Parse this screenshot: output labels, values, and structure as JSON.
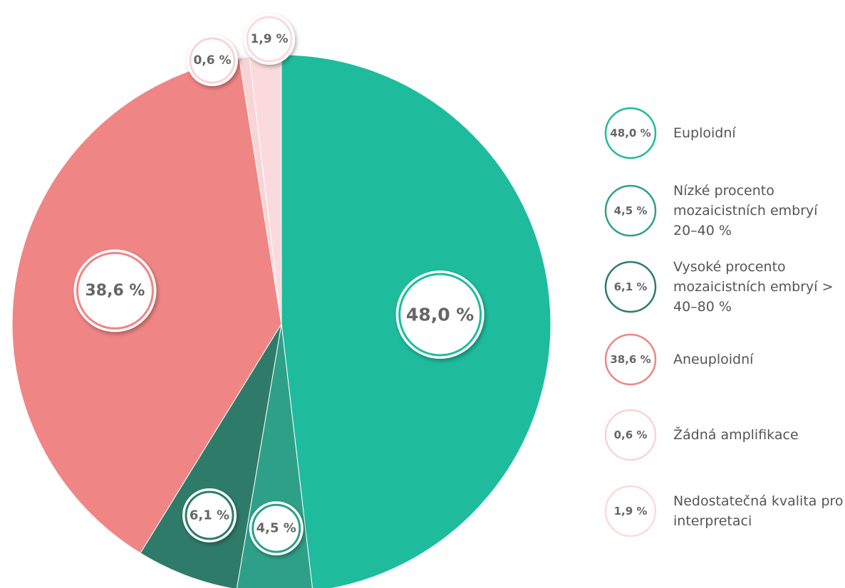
{
  "chart_data": {
    "type": "pie",
    "categories": [
      "Euploidní",
      "Nízké procento mozaicistních embryí 20–40 %",
      "Vysoké procento mozaicistních embryí > 40–80 %",
      "Aneuploidní",
      "Žádná amplifikace",
      "Nedostatečná kvalita pro interpretaci"
    ],
    "values": [
      48.0,
      4.5,
      6.1,
      38.6,
      0.6,
      1.9
    ],
    "value_labels": [
      "48,0 %",
      "4,5 %",
      "6,1 %",
      "38,6 %",
      "0,6 %",
      "1,9 %"
    ],
    "colors": [
      "#1ebc9d",
      "#2fa088",
      "#2f7b6a",
      "#f08585",
      "#f9d4d7",
      "#fbdadd"
    ]
  }
}
